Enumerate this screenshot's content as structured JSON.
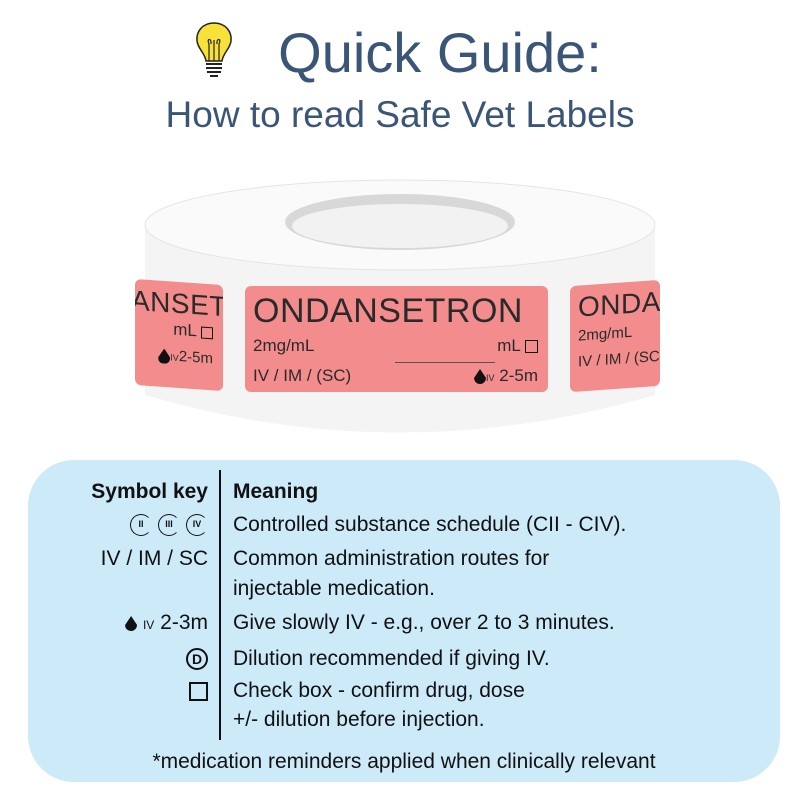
{
  "header": {
    "title": "Quick Guide:",
    "subtitle": "How to read Safe Vet Labels",
    "icon": "lightbulb-icon"
  },
  "label": {
    "drug": "ONDANSETRON",
    "concentration": "2mg/mL",
    "routes": "IV / IM / (SC)",
    "volume_unit": "mL",
    "iv_prefix": "IV",
    "rate": "2-5m",
    "side_left_name": "ANSETRON",
    "side_right_name": "ONDANSETRON",
    "color": "#f38d8d"
  },
  "key": {
    "symbol_header": "Symbol key",
    "meaning_header": "Meaning",
    "schedules": [
      "II",
      "III",
      "IV"
    ],
    "rows": [
      {
        "symbol": "",
        "meaning": "Controlled substance schedule (CII - CIV)."
      },
      {
        "symbol": "IV / IM / SC",
        "meaning": "Common administration routes for",
        "meaning2": "injectable medication."
      },
      {
        "symbol_prefix": "IV",
        "symbol": "2-3m",
        "meaning": "Give slowly IV - e.g., over 2 to 3 minutes."
      },
      {
        "symbol": "D",
        "meaning": "Dilution recommended if giving IV."
      },
      {
        "symbol": "",
        "meaning": "Check box - confirm drug, dose",
        "meaning2": "+/- dilution before injection."
      }
    ],
    "footnote": "*medication reminders applied when clinically relevant",
    "background": "#cdeaf9"
  },
  "colors": {
    "title": "#3a5577"
  }
}
